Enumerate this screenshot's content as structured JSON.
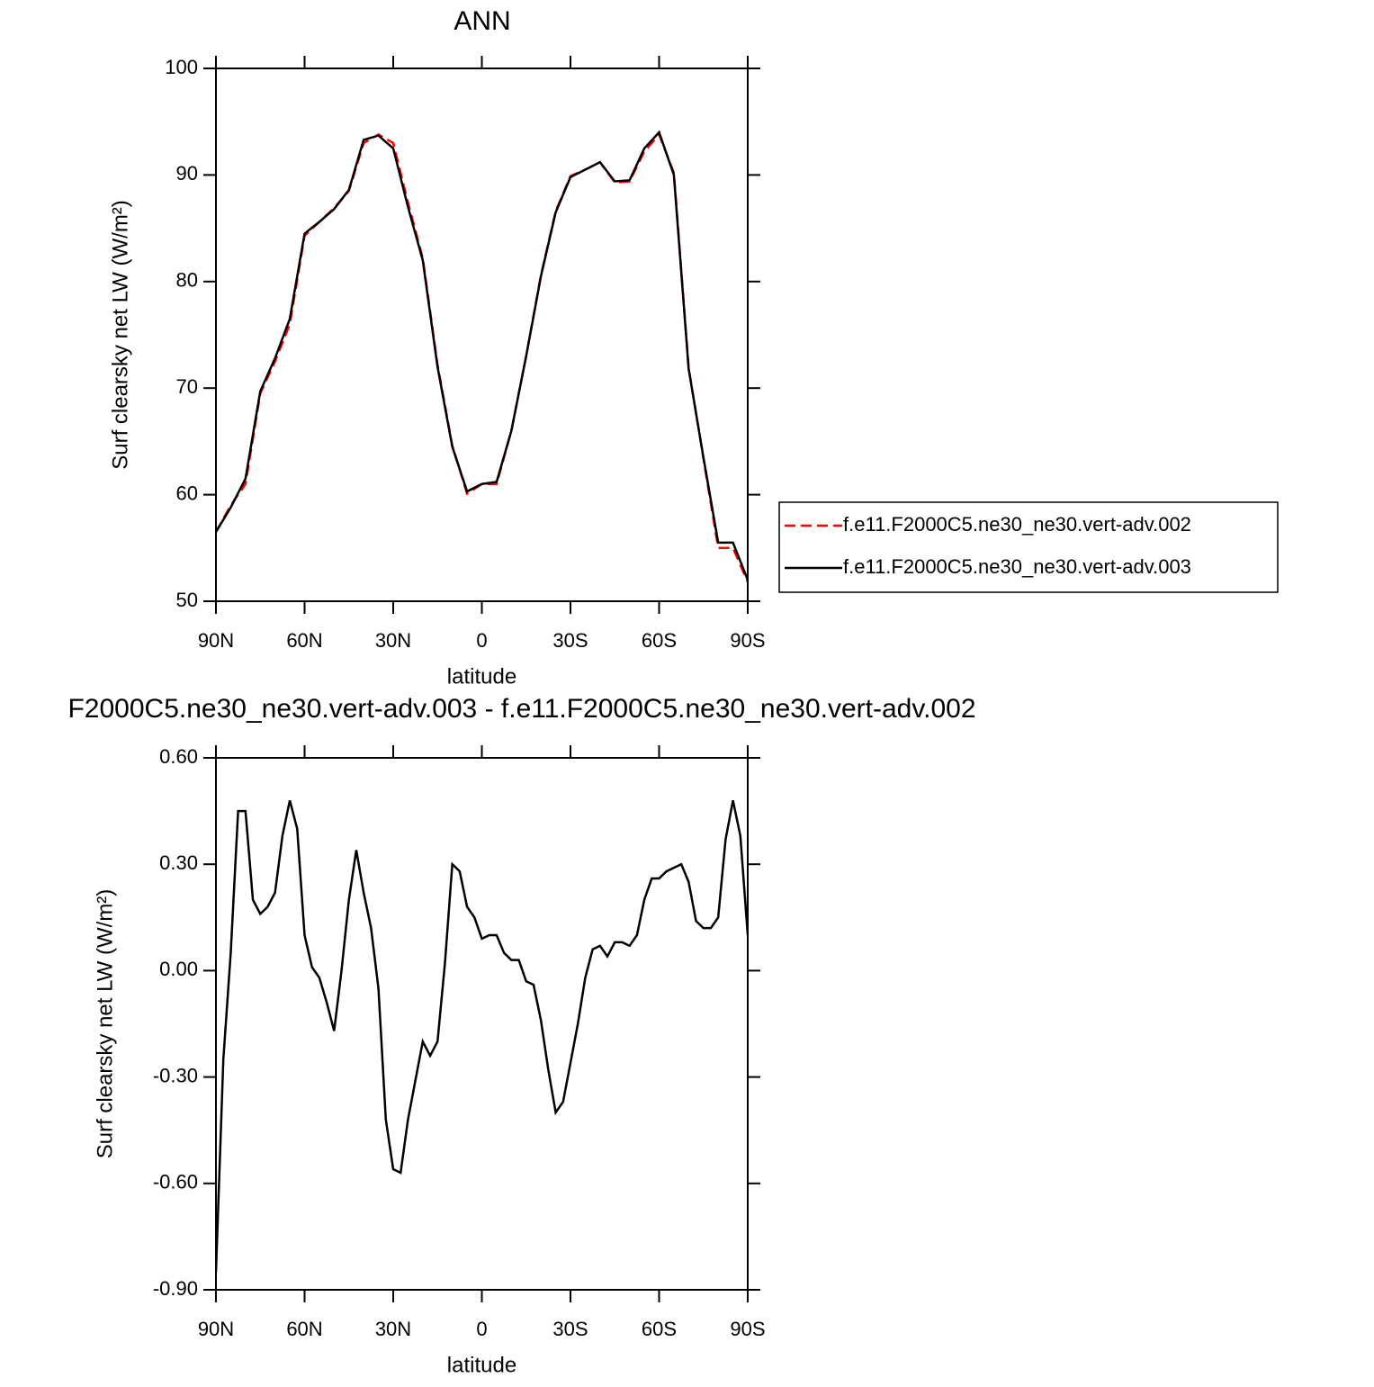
{
  "chart_data": [
    {
      "type": "line",
      "title": "ANN",
      "xlabel": "latitude",
      "ylabel": "Surf clearsky net LW (W/m²)",
      "x": [
        90,
        85,
        80,
        75,
        70,
        65,
        60,
        55,
        50,
        45,
        40,
        35,
        30,
        25,
        20,
        15,
        10,
        5,
        0,
        -5,
        -10,
        -15,
        -20,
        -25,
        -30,
        -35,
        -40,
        -45,
        -50,
        -55,
        -60,
        -65,
        -70,
        -75,
        -80,
        -85,
        -90
      ],
      "series": [
        {
          "name": "f.e11.F2000C5.ne30_ne30.vert-adv.002",
          "color": "#ff0000",
          "line_style": "dashed",
          "values": [
            56.5,
            59,
            61,
            69.5,
            72.5,
            76,
            84.3,
            85.6,
            86.9,
            88.5,
            93,
            93.8,
            93,
            87.4,
            82.2,
            72.2,
            64.6,
            60.1,
            61,
            61,
            66,
            73,
            80.6,
            86.6,
            89.9,
            90.5,
            91.2,
            89.3,
            89.4,
            92.2,
            93.8,
            90.2,
            71.9,
            63.4,
            55,
            55,
            51.8
          ]
        },
        {
          "name": "f.e11.F2000C5.ne30_ne30.vert-adv.003",
          "color": "#000000",
          "line_style": "solid",
          "values": [
            56.5,
            58.8,
            61.5,
            69.7,
            72.8,
            76.5,
            84.5,
            85.6,
            86.8,
            88.6,
            93.3,
            93.7,
            92.5,
            87,
            82,
            72,
            64.5,
            60.3,
            61,
            61.2,
            66,
            73,
            80.5,
            86.5,
            89.8,
            90.5,
            91.2,
            89.4,
            89.5,
            92.5,
            94,
            90,
            71.8,
            63.5,
            55.5,
            55.5,
            52
          ]
        }
      ],
      "xlim": [
        90,
        -90
      ],
      "xticks": [
        {
          "value": 90,
          "label": "90N"
        },
        {
          "value": 60,
          "label": "60N"
        },
        {
          "value": 30,
          "label": "30N"
        },
        0,
        {
          "value": -30,
          "label": "30S"
        },
        {
          "value": -60,
          "label": "60S"
        },
        {
          "value": -90,
          "label": "90S"
        }
      ],
      "ylim": [
        50,
        100
      ],
      "yticks": [
        50,
        60,
        70,
        80,
        90,
        100
      ],
      "legend": "right"
    },
    {
      "type": "line",
      "title": "F2000C5.ne30_ne30.vert-adv.003 - f.e11.F2000C5.ne30_ne30.vert-adv.002",
      "xlabel": "latitude",
      "ylabel": "Surf clearsky net LW (W/m²)",
      "x": [
        90,
        87.5,
        85,
        82.5,
        80,
        77.5,
        75,
        72.5,
        70,
        67.5,
        65,
        62.5,
        60,
        57.5,
        55,
        52.5,
        50,
        47.5,
        45,
        42.5,
        40,
        37.5,
        35,
        32.5,
        30,
        27.5,
        25,
        22.5,
        20,
        17.5,
        15,
        12.5,
        10,
        7.5,
        5,
        2.5,
        0,
        -2.5,
        -5,
        -7.5,
        -10,
        -12.5,
        -15,
        -17.5,
        -20,
        -22.5,
        -25,
        -27.5,
        -30,
        -32.5,
        -35,
        -37.5,
        -40,
        -42.5,
        -45,
        -47.5,
        -50,
        -52.5,
        -55,
        -57.5,
        -60,
        -62.5,
        -65,
        -67.5,
        -70,
        -72.5,
        -75,
        -77.5,
        -80,
        -82.5,
        -85,
        -87.5,
        -90
      ],
      "series": [
        {
          "color": "#000000",
          "line_style": "solid",
          "values": [
            -0.85,
            -0.25,
            0.05,
            0.45,
            0.45,
            0.2,
            0.16,
            0.18,
            0.22,
            0.38,
            0.48,
            0.4,
            0.1,
            0.01,
            -0.02,
            -0.09,
            -0.17,
            0.0,
            0.2,
            0.34,
            0.22,
            0.12,
            -0.05,
            -0.42,
            -0.56,
            -0.57,
            -0.42,
            -0.31,
            -0.2,
            -0.24,
            -0.2,
            0.02,
            0.3,
            0.28,
            0.18,
            0.15,
            0.09,
            0.1,
            0.1,
            0.05,
            0.03,
            0.03,
            -0.03,
            -0.04,
            -0.14,
            -0.28,
            -0.4,
            -0.37,
            -0.26,
            -0.15,
            -0.02,
            0.06,
            0.07,
            0.04,
            0.08,
            0.08,
            0.07,
            0.1,
            0.2,
            0.26,
            0.26,
            0.28,
            0.29,
            0.3,
            0.25,
            0.14,
            0.12,
            0.12,
            0.15,
            0.37,
            0.48,
            0.38,
            0.1
          ]
        }
      ],
      "xlim": [
        90,
        -90
      ],
      "xticks": [
        {
          "value": 90,
          "label": "90N"
        },
        {
          "value": 60,
          "label": "60N"
        },
        {
          "value": 30,
          "label": "30N"
        },
        0,
        {
          "value": -30,
          "label": "30S"
        },
        {
          "value": -60,
          "label": "60S"
        },
        {
          "value": -90,
          "label": "90S"
        }
      ],
      "ylim": [
        -0.9,
        0.6
      ],
      "yticks": [
        {
          "value": -0.9,
          "label": "-0.90"
        },
        {
          "value": -0.6,
          "label": "-0.60"
        },
        {
          "value": -0.3,
          "label": "-0.30"
        },
        {
          "value": 0,
          "label": "0.00"
        },
        {
          "value": 0.3,
          "label": "0.30"
        },
        {
          "value": 0.6,
          "label": "0.60"
        }
      ]
    }
  ]
}
